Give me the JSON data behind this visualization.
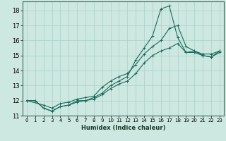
{
  "xlabel": "Humidex (Indice chaleur)",
  "xlim": [
    -0.5,
    23.5
  ],
  "ylim": [
    11,
    18.6
  ],
  "yticks": [
    11,
    12,
    13,
    14,
    15,
    16,
    17,
    18
  ],
  "xticks": [
    0,
    1,
    2,
    3,
    4,
    5,
    6,
    7,
    8,
    9,
    10,
    11,
    12,
    13,
    14,
    15,
    16,
    17,
    18,
    19,
    20,
    21,
    22,
    23
  ],
  "background_color": "#cce8e0",
  "grid_color": "#aacfc8",
  "line_color": "#1a6b5a",
  "series1_x": [
    0,
    1,
    2,
    3,
    4,
    5,
    6,
    7,
    8,
    9,
    10,
    11,
    12,
    13,
    14,
    15,
    16,
    17,
    18,
    19,
    20,
    21,
    22,
    23
  ],
  "series1_y": [
    12.0,
    12.0,
    11.5,
    11.3,
    11.6,
    11.7,
    12.0,
    12.0,
    12.2,
    12.5,
    13.0,
    13.3,
    13.6,
    14.7,
    15.5,
    16.3,
    18.1,
    18.3,
    16.2,
    15.2,
    15.3,
    15.0,
    14.9,
    15.3
  ],
  "series2_x": [
    0,
    1,
    2,
    3,
    4,
    5,
    6,
    7,
    8,
    9,
    10,
    11,
    12,
    13,
    14,
    15,
    16,
    17,
    18,
    19,
    20,
    21,
    22,
    23
  ],
  "series2_y": [
    12.0,
    12.0,
    11.5,
    11.3,
    11.6,
    11.7,
    11.9,
    12.0,
    12.1,
    12.4,
    12.8,
    13.1,
    13.3,
    13.8,
    14.5,
    15.0,
    15.3,
    15.5,
    15.8,
    15.2,
    15.2,
    15.0,
    14.9,
    15.2
  ],
  "series3_x": [
    0,
    2,
    3,
    4,
    5,
    6,
    7,
    8,
    9,
    10,
    11,
    12,
    13,
    14,
    15,
    16,
    17,
    18,
    19,
    20,
    21,
    22,
    23
  ],
  "series3_y": [
    12.0,
    11.7,
    11.5,
    11.8,
    11.9,
    12.1,
    12.2,
    12.3,
    12.9,
    13.3,
    13.6,
    13.8,
    14.4,
    15.1,
    15.6,
    16.0,
    16.8,
    17.0,
    15.6,
    15.3,
    15.1,
    15.1,
    15.3
  ]
}
